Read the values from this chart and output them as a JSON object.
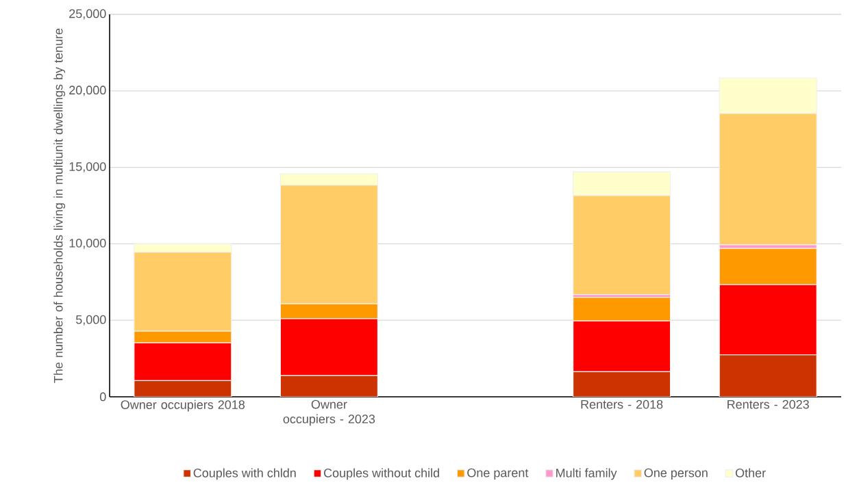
{
  "chart_data": {
    "type": "bar",
    "stacked": true,
    "ylabel": "The number of households living in multiunit dwellings by tenure",
    "categories": [
      "Owner occupiers 2018",
      "Owner occupiers - 2023",
      null,
      "Renters - 2018",
      "Renters - 2023"
    ],
    "series": [
      {
        "name": "Couples with chldn",
        "color": "#cc3300",
        "values": [
          1060,
          1390,
          null,
          1640,
          2740
        ]
      },
      {
        "name": "Couples without child",
        "color": "#ff0000",
        "values": [
          2470,
          3710,
          null,
          3320,
          4590
        ]
      },
      {
        "name": "One parent",
        "color": "#ff9900",
        "values": [
          760,
          980,
          null,
          1540,
          2370
        ]
      },
      {
        "name": "Multi family",
        "color": "#ff99cc",
        "values": [
          null,
          null,
          null,
          180,
          230
        ]
      },
      {
        "name": "One person",
        "color": "#ffcc66",
        "values": [
          5160,
          7750,
          null,
          6470,
          8590
        ]
      },
      {
        "name": "Other",
        "color": "#ffffcc",
        "values": [
          550,
          750,
          null,
          1560,
          2320
        ]
      }
    ],
    "ylim": [
      0,
      25000
    ],
    "yticks": [
      0,
      {
        "value": 5000,
        "label": "5,000"
      },
      {
        "value": 10000,
        "label": "10,000"
      },
      {
        "value": 15000,
        "label": "15,000"
      },
      {
        "value": 20000,
        "label": "20,000"
      },
      {
        "value": 25000,
        "label": "25,000"
      }
    ],
    "grid": "y",
    "legend": "bottom"
  }
}
